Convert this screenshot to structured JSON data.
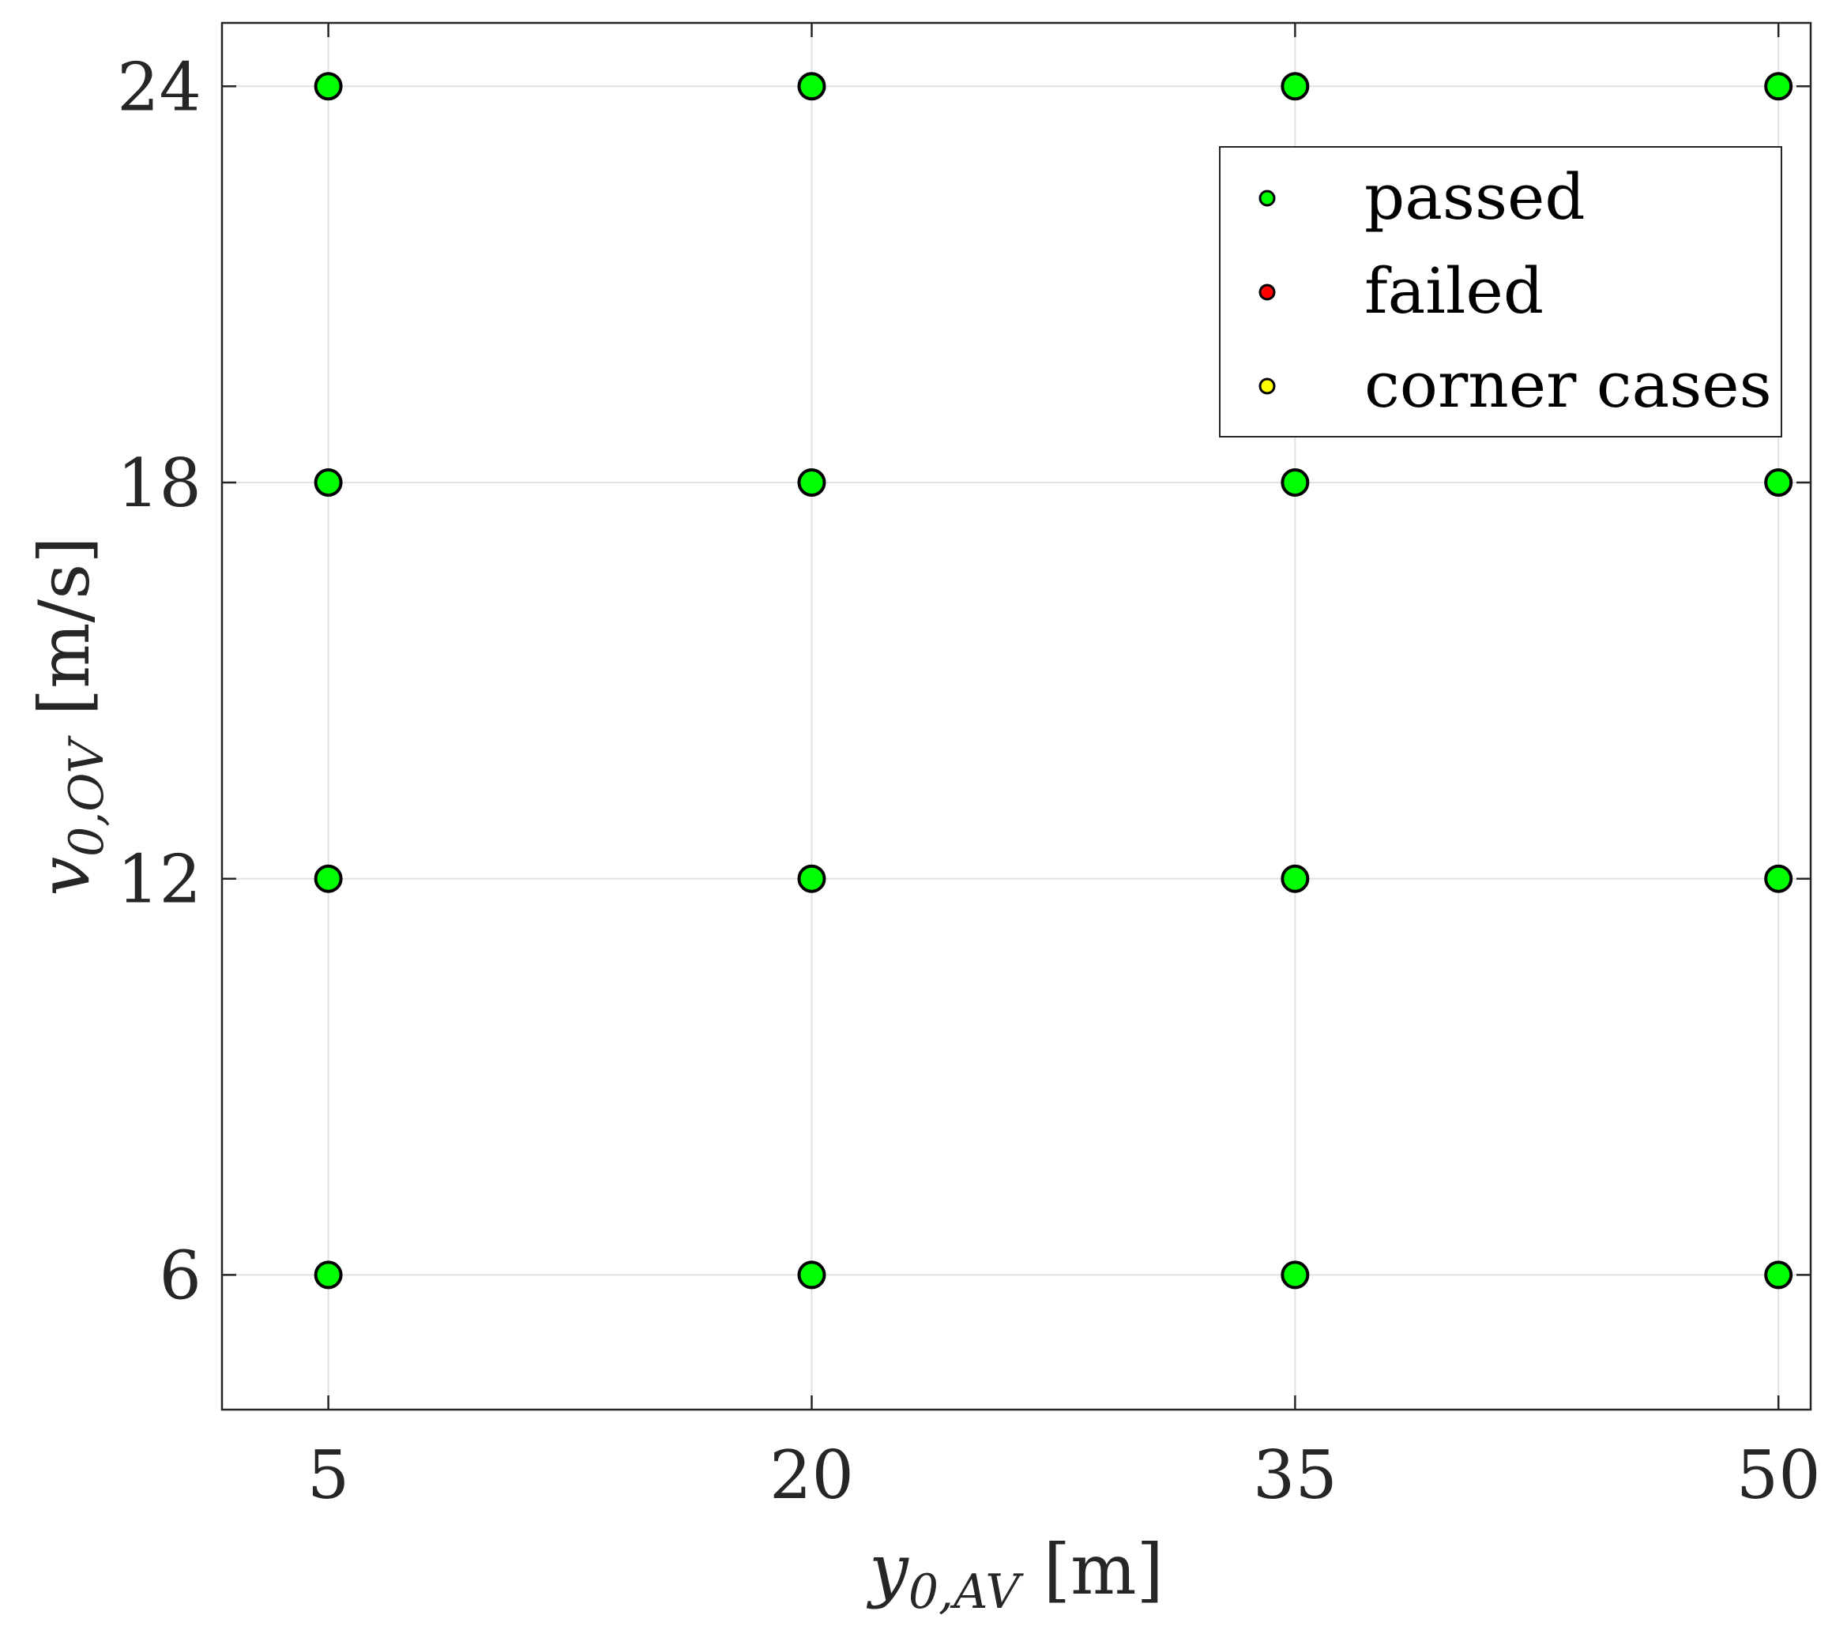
{
  "chart_data": {
    "type": "scatter",
    "xlabel": {
      "main": "y",
      "sub": "0,AV",
      "unit": "[m]"
    },
    "ylabel": {
      "main": "v",
      "sub": "0,OV",
      "unit": "[m/s]"
    },
    "xlim": [
      1.7,
      51
    ],
    "ylim": [
      3.96,
      24.96
    ],
    "xticks": [
      5,
      20,
      35,
      50
    ],
    "yticks": [
      6,
      12,
      18,
      24
    ],
    "grid": true,
    "legend_position": "top-right",
    "series": [
      {
        "name": "passed",
        "color": "#00ff00",
        "points": [
          [
            5,
            6
          ],
          [
            20,
            6
          ],
          [
            35,
            6
          ],
          [
            50,
            6
          ],
          [
            5,
            12
          ],
          [
            20,
            12
          ],
          [
            35,
            12
          ],
          [
            50,
            12
          ],
          [
            5,
            18
          ],
          [
            20,
            18
          ],
          [
            35,
            18
          ],
          [
            50,
            18
          ],
          [
            5,
            24
          ],
          [
            20,
            24
          ],
          [
            35,
            24
          ],
          [
            50,
            24
          ]
        ]
      },
      {
        "name": "failed",
        "color": "#ff0000",
        "points": []
      },
      {
        "name": "corner cases",
        "color": "#ffff00",
        "points": []
      }
    ]
  }
}
